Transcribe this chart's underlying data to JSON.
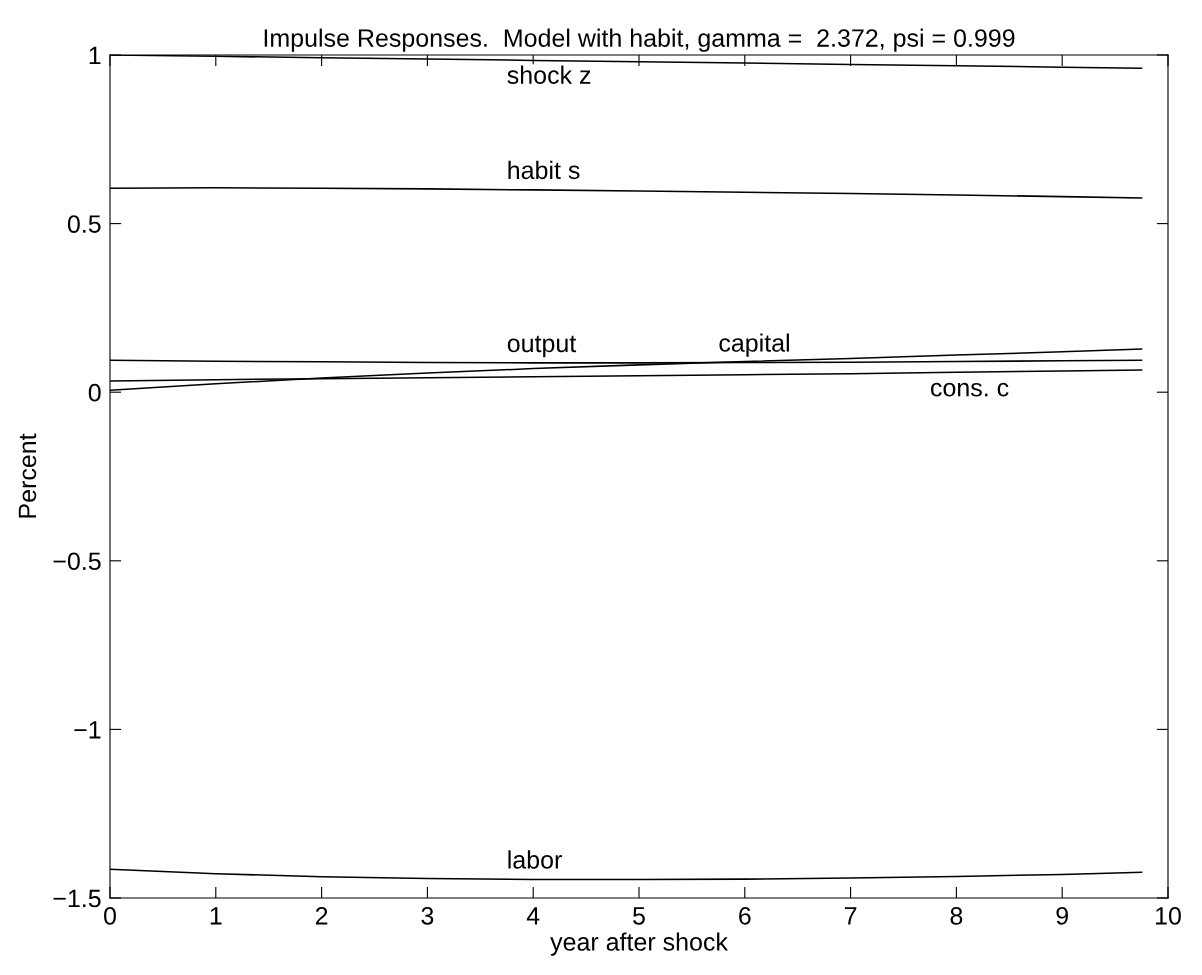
{
  "chart_data": {
    "type": "line",
    "title": "Impulse Responses.  Model with habit, gamma =  2.372, psi = 0.999",
    "xlabel": "year after shock",
    "ylabel": "Percent",
    "x": [
      0,
      1,
      2,
      3,
      4,
      5,
      6,
      7,
      8,
      9,
      9.75
    ],
    "series": [
      {
        "name": "shock z",
        "color": "#000000",
        "values": [
          1,
          0.996,
          0.992,
          0.988,
          0.984,
          0.98,
          0.976,
          0.972,
          0.968,
          0.964,
          0.961
        ]
      },
      {
        "name": "habit s",
        "color": "#000000",
        "values": [
          0.605,
          0.606,
          0.605,
          0.603,
          0.6,
          0.597,
          0.593,
          0.589,
          0.585,
          0.58,
          0.576
        ]
      },
      {
        "name": "output",
        "color": "#000000",
        "values": [
          0.095,
          0.092,
          0.09,
          0.088,
          0.087,
          0.087,
          0.088,
          0.089,
          0.091,
          0.093,
          0.095
        ]
      },
      {
        "name": "capital",
        "color": "#000000",
        "values": [
          0.006,
          0.025,
          0.042,
          0.057,
          0.07,
          0.081,
          0.091,
          0.1,
          0.11,
          0.12,
          0.128
        ]
      },
      {
        "name": "cons. c",
        "color": "#000000",
        "values": [
          0.033,
          0.037,
          0.04,
          0.043,
          0.046,
          0.049,
          0.052,
          0.055,
          0.059,
          0.063,
          0.066
        ]
      },
      {
        "name": "labor",
        "color": "#000000",
        "values": [
          -1.415,
          -1.428,
          -1.437,
          -1.442,
          -1.445,
          -1.445,
          -1.444,
          -1.441,
          -1.436,
          -1.43,
          -1.424
        ]
      }
    ],
    "xlim": [
      0,
      10
    ],
    "xticks": [
      0,
      1,
      2,
      3,
      4,
      5,
      6,
      7,
      8,
      9,
      10
    ],
    "ylim": [
      -1.5,
      1
    ],
    "yticks": [
      {
        "value": -1.5,
        "label": "−1.5"
      },
      {
        "value": -1,
        "label": "−1"
      },
      {
        "value": -0.5,
        "label": "−0.5"
      },
      0,
      0.5,
      1
    ],
    "grid": false,
    "marker": "none",
    "line_style": "solid"
  }
}
